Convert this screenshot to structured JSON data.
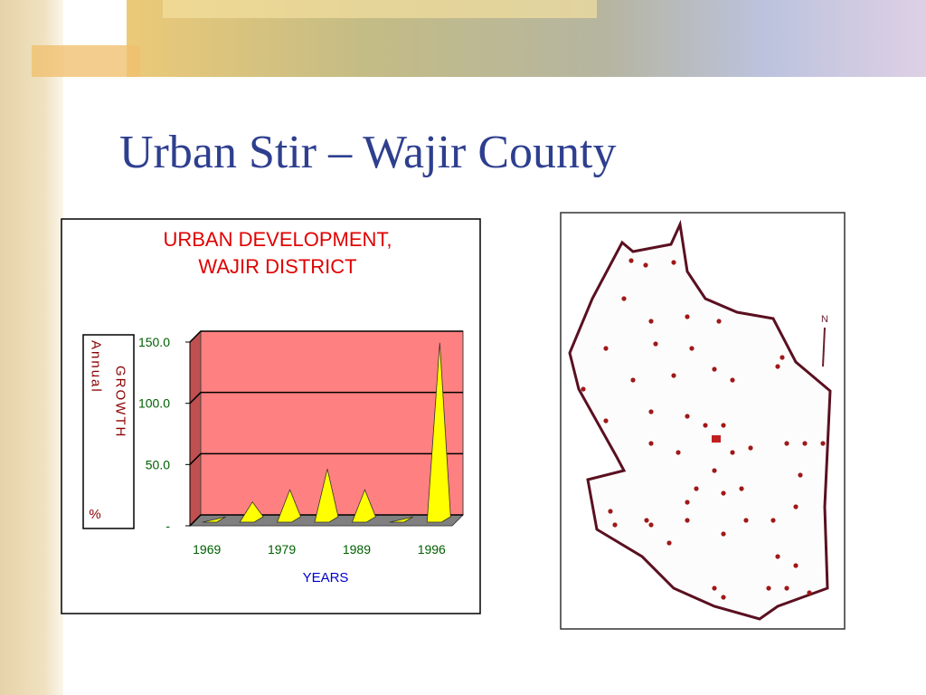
{
  "slide": {
    "title": "Urban Stir – Wajir County"
  },
  "chart_data": {
    "type": "bar",
    "title": [
      "URBAN DEVELOPMENT,",
      "WAJIR DISTRICT"
    ],
    "ylabel": [
      "Annual",
      "GROWTH",
      "%"
    ],
    "xlabel": "YEARS",
    "categories": [
      "1969",
      null,
      "1979",
      null,
      "1989",
      null,
      "1996"
    ],
    "values": [
      0,
      15,
      25,
      42,
      25,
      0,
      145
    ],
    "color": "#ffff00",
    "plot_color": "#ff8080",
    "ylim": [
      0,
      150
    ],
    "yticks": [
      {
        "value": 0,
        "label": "-"
      },
      {
        "value": 50,
        "label": "50.0"
      },
      {
        "value": 100,
        "label": "100.0"
      },
      {
        "value": 150,
        "label": "150.0"
      }
    ],
    "grid": true
  },
  "map": {
    "north_label": "N"
  }
}
